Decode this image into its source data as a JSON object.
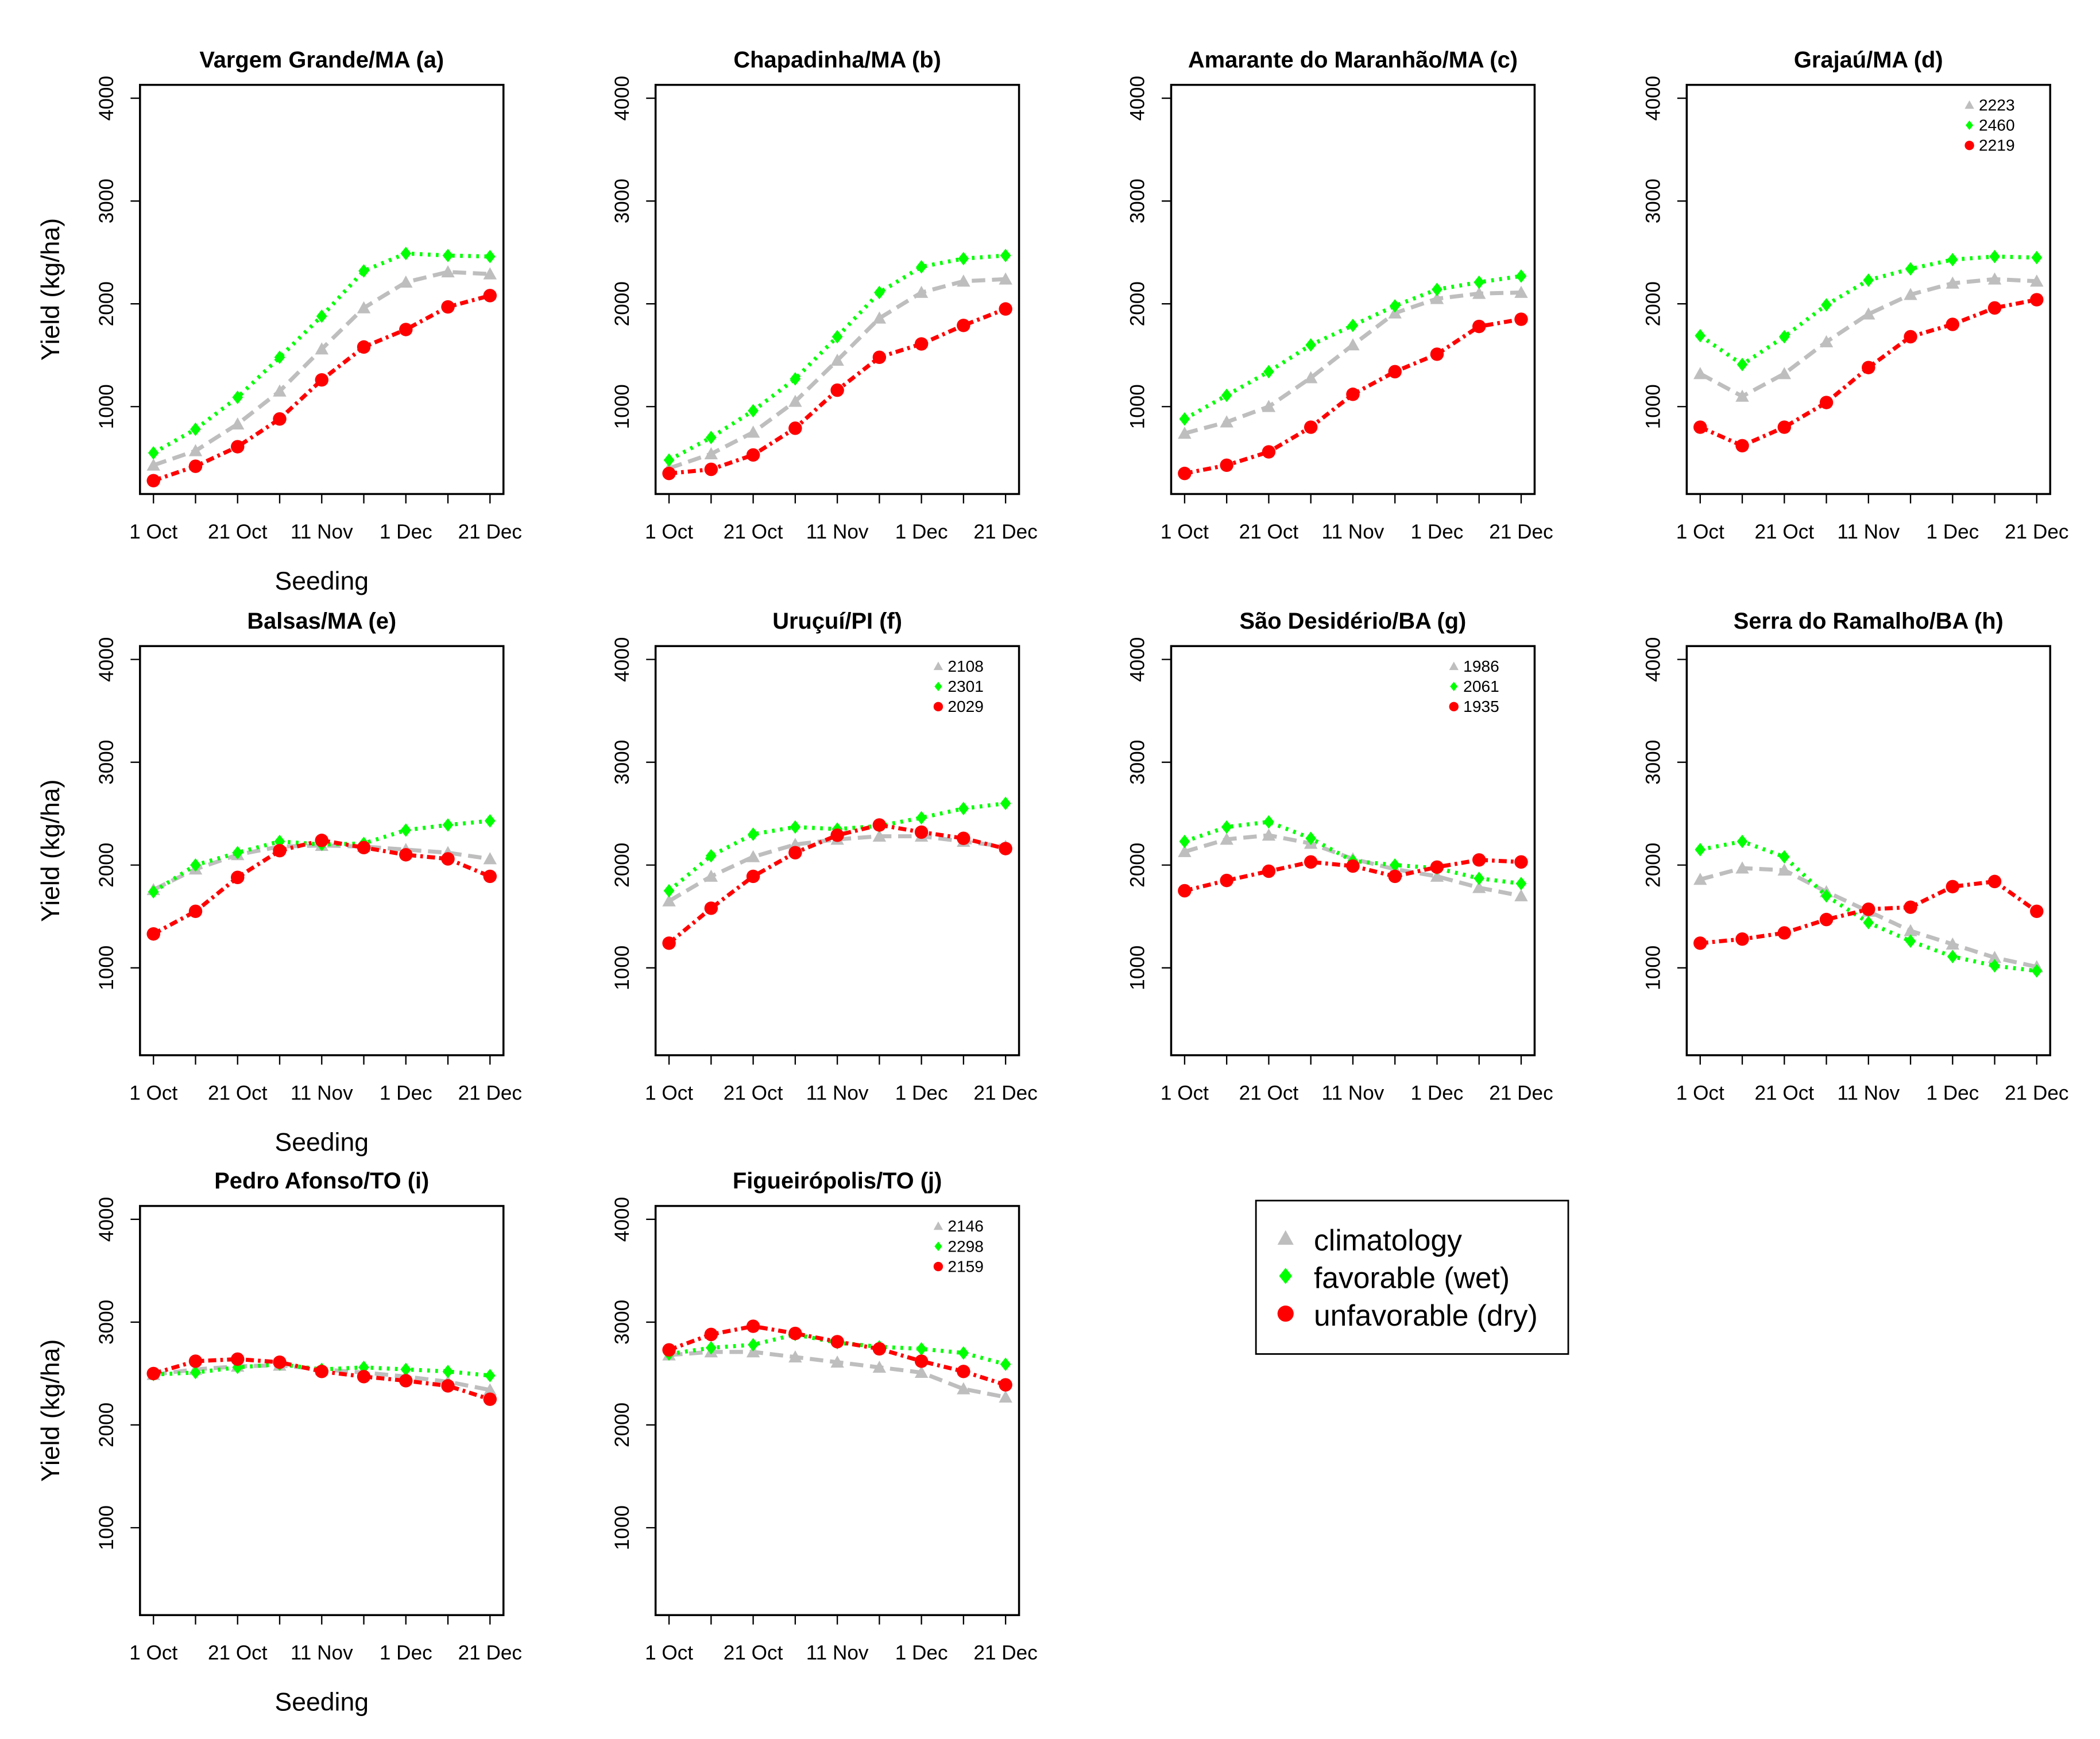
{
  "chart_data": [
    {
      "type": "line",
      "title": "Vargem Grande/MA (a)",
      "ylabel": "Yield (kg/ha)",
      "xlabel": "Seeding",
      "categories": [
        "1 Oct",
        null,
        "21 Oct",
        null,
        "11 Nov",
        null,
        "1 Dec",
        null,
        "21 Dec"
      ],
      "ylim": [
        150,
        4130
      ],
      "yticks": [
        1000,
        2000,
        3000,
        4000
      ],
      "series": [
        {
          "values": [
            430,
            570,
            830,
            1150,
            1560,
            1960,
            2210,
            2310,
            2290
          ]
        },
        {
          "values": [
            550,
            780,
            1090,
            1480,
            1880,
            2320,
            2490,
            2470,
            2460
          ]
        },
        {
          "values": [
            280,
            420,
            610,
            880,
            1260,
            1580,
            1750,
            1970,
            2080
          ]
        }
      ]
    },
    {
      "type": "line",
      "title": "Chapadinha/MA (b)",
      "categories": [
        "1 Oct",
        null,
        "21 Oct",
        null,
        "11 Nov",
        null,
        "1 Dec",
        null,
        "21 Dec"
      ],
      "ylim": [
        150,
        4130
      ],
      "yticks": [
        1000,
        2000,
        3000,
        4000
      ],
      "series": [
        {
          "values": [
            400,
            540,
            750,
            1050,
            1450,
            1860,
            2110,
            2220,
            2240
          ]
        },
        {
          "values": [
            480,
            700,
            960,
            1270,
            1680,
            2110,
            2360,
            2440,
            2470
          ]
        },
        {
          "values": [
            350,
            390,
            530,
            790,
            1160,
            1480,
            1610,
            1790,
            1950
          ]
        }
      ]
    },
    {
      "type": "line",
      "title": "Amarante do Maranhão/MA (c)",
      "categories": [
        "1 Oct",
        null,
        "21 Oct",
        null,
        "11 Nov",
        null,
        "1 Dec",
        null,
        "21 Dec"
      ],
      "ylim": [
        150,
        4130
      ],
      "yticks": [
        1000,
        2000,
        3000,
        4000
      ],
      "series": [
        {
          "values": [
            740,
            850,
            1000,
            1280,
            1600,
            1910,
            2050,
            2100,
            2110
          ]
        },
        {
          "values": [
            880,
            1110,
            1340,
            1600,
            1790,
            1980,
            2140,
            2210,
            2270
          ]
        },
        {
          "values": [
            350,
            430,
            560,
            800,
            1120,
            1340,
            1510,
            1780,
            1850
          ]
        }
      ]
    },
    {
      "type": "line",
      "title": "Grajaú/MA (d)",
      "categories": [
        "1 Oct",
        null,
        "21 Oct",
        null,
        "11 Nov",
        null,
        "1 Dec",
        null,
        "21 Dec"
      ],
      "ylim": [
        150,
        4130
      ],
      "yticks": [
        1000,
        2000,
        3000,
        4000
      ],
      "series": [
        {
          "values": [
            1320,
            1100,
            1320,
            1630,
            1900,
            2090,
            2200,
            2240,
            2220
          ],
          "legend_value": 2223
        },
        {
          "values": [
            1690,
            1410,
            1680,
            1990,
            2230,
            2340,
            2430,
            2460,
            2450
          ],
          "legend_value": 2460
        },
        {
          "values": [
            800,
            620,
            800,
            1040,
            1380,
            1680,
            1800,
            1960,
            2040
          ],
          "legend_value": 2219
        }
      ]
    },
    {
      "type": "line",
      "title": "Balsas/MA (e)",
      "ylabel": "Yield (kg/ha)",
      "xlabel": "Seeding",
      "categories": [
        "1 Oct",
        null,
        "21 Oct",
        null,
        "11 Nov",
        null,
        "1 Dec",
        null,
        "21 Dec"
      ],
      "ylim": [
        150,
        4130
      ],
      "yticks": [
        1000,
        2000,
        3000,
        4000
      ],
      "series": [
        {
          "values": [
            1760,
            1960,
            2100,
            2180,
            2190,
            2180,
            2150,
            2120,
            2060
          ]
        },
        {
          "values": [
            1740,
            2000,
            2120,
            2230,
            2200,
            2210,
            2340,
            2390,
            2430
          ]
        },
        {
          "values": [
            1330,
            1550,
            1880,
            2140,
            2240,
            2170,
            2100,
            2060,
            1890
          ]
        }
      ]
    },
    {
      "type": "line",
      "title": "Uruçuí/PI  (f)",
      "categories": [
        "1 Oct",
        null,
        "21 Oct",
        null,
        "11 Nov",
        null,
        "1 Dec",
        null,
        "21 Dec"
      ],
      "ylim": [
        150,
        4130
      ],
      "yticks": [
        1000,
        2000,
        3000,
        4000
      ],
      "series": [
        {
          "values": [
            1650,
            1890,
            2080,
            2200,
            2250,
            2280,
            2280,
            2230,
            2180
          ],
          "legend_value": 2108
        },
        {
          "values": [
            1750,
            2090,
            2300,
            2370,
            2350,
            2380,
            2460,
            2550,
            2600
          ],
          "legend_value": 2301
        },
        {
          "values": [
            1240,
            1580,
            1890,
            2120,
            2290,
            2390,
            2320,
            2260,
            2160
          ],
          "legend_value": 2029
        }
      ]
    },
    {
      "type": "line",
      "title": "São Desidério/BA (g)",
      "categories": [
        "1 Oct",
        null,
        "21 Oct",
        null,
        "11 Nov",
        null,
        "1 Dec",
        null,
        "21 Dec"
      ],
      "ylim": [
        150,
        4130
      ],
      "yticks": [
        1000,
        2000,
        3000,
        4000
      ],
      "series": [
        {
          "values": [
            2130,
            2250,
            2290,
            2210,
            2060,
            1960,
            1890,
            1780,
            1700
          ],
          "legend_value": 1986
        },
        {
          "values": [
            2230,
            2370,
            2420,
            2260,
            2040,
            2000,
            1970,
            1870,
            1820
          ],
          "legend_value": 2061
        },
        {
          "values": [
            1750,
            1850,
            1940,
            2030,
            1990,
            1890,
            1980,
            2050,
            2030
          ],
          "legend_value": 1935
        }
      ]
    },
    {
      "type": "line",
      "title": "Serra do Ramalho/BA (h)",
      "categories": [
        "1 Oct",
        null,
        "21 Oct",
        null,
        "11 Nov",
        null,
        "1 Dec",
        null,
        "21 Dec"
      ],
      "ylim": [
        150,
        4130
      ],
      "yticks": [
        1000,
        2000,
        3000,
        4000
      ],
      "series": [
        {
          "values": [
            1860,
            1970,
            1950,
            1740,
            1550,
            1360,
            1230,
            1100,
            1010
          ]
        },
        {
          "values": [
            2150,
            2230,
            2080,
            1700,
            1440,
            1260,
            1110,
            1020,
            970
          ]
        },
        {
          "values": [
            1240,
            1280,
            1340,
            1470,
            1570,
            1590,
            1790,
            1840,
            1550
          ]
        }
      ]
    },
    {
      "type": "line",
      "title": "Pedro Afonso/TO  (i)",
      "ylabel": "Yield (kg/ha)",
      "xlabel": "Seeding",
      "categories": [
        "1 Oct",
        null,
        "21 Oct",
        null,
        "11 Nov",
        null,
        "1 Dec",
        null,
        "21 Dec"
      ],
      "ylim": [
        150,
        4130
      ],
      "yticks": [
        1000,
        2000,
        3000,
        4000
      ],
      "series": [
        {
          "values": [
            2490,
            2540,
            2570,
            2580,
            2540,
            2510,
            2470,
            2420,
            2340
          ]
        },
        {
          "values": [
            2490,
            2510,
            2560,
            2590,
            2540,
            2560,
            2540,
            2520,
            2480
          ]
        },
        {
          "values": [
            2500,
            2620,
            2640,
            2610,
            2520,
            2470,
            2430,
            2380,
            2250
          ]
        }
      ]
    },
    {
      "type": "line",
      "title": "Figueirópolis/TO (j)",
      "categories": [
        "1 Oct",
        null,
        "21 Oct",
        null,
        "11 Nov",
        null,
        "1 Dec",
        null,
        "21 Dec"
      ],
      "ylim": [
        150,
        4130
      ],
      "yticks": [
        1000,
        2000,
        3000,
        4000
      ],
      "series": [
        {
          "values": [
            2680,
            2710,
            2710,
            2660,
            2610,
            2560,
            2510,
            2350,
            2270
          ],
          "legend_value": 2146
        },
        {
          "values": [
            2690,
            2750,
            2780,
            2880,
            2800,
            2760,
            2740,
            2700,
            2590
          ],
          "legend_value": 2298
        },
        {
          "values": [
            2730,
            2880,
            2960,
            2890,
            2810,
            2740,
            2620,
            2520,
            2390
          ],
          "legend_value": 2159
        }
      ]
    }
  ],
  "legend": {
    "series": [
      {
        "name": "climatology",
        "color": "#bebebe",
        "marker": "triangle",
        "dash": "10 5"
      },
      {
        "name": "favorable (wet)",
        "color": "#00ff00",
        "marker": "diamond",
        "dash": "2 4"
      },
      {
        "name": "unfavorable (dry)",
        "color": "#ff0000",
        "marker": "circle",
        "dash": "6 3 2 3"
      }
    ]
  }
}
